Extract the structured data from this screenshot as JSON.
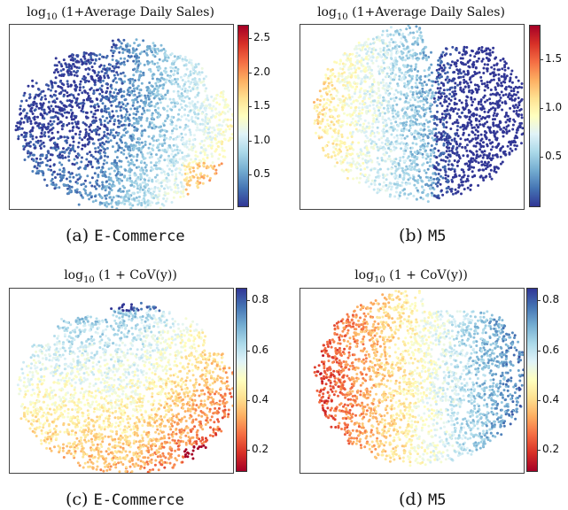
{
  "chart_data": [
    {
      "type": "scatter",
      "title_prefix": "log",
      "title_sub": "10",
      "title_rest": " (1+Average Daily Sales)",
      "caption_label": "(a)",
      "caption_dataset": "E-Commerce",
      "colorbar": {
        "range": [
          0.05,
          2.7
        ],
        "ticks": [
          "2.5",
          "2.0",
          "1.5",
          "1.0",
          "0.5"
        ],
        "tick_values": [
          2.5,
          2.0,
          1.5,
          1.0,
          0.5
        ],
        "cmap": "RdYlBu_r"
      },
      "grid": false
    },
    {
      "type": "scatter",
      "title_prefix": "log",
      "title_sub": "10",
      "title_rest": " (1+Average Daily Sales)",
      "caption_label": "(b)",
      "caption_dataset": "M5",
      "colorbar": {
        "range": [
          0.0,
          1.85
        ],
        "ticks": [
          "1.5",
          "1.0",
          "0.5"
        ],
        "tick_values": [
          1.5,
          1.0,
          0.5
        ],
        "cmap": "RdYlBu_r"
      },
      "grid": false
    },
    {
      "type": "scatter",
      "title_prefix": "log",
      "title_sub": "10",
      "title_rest": " (1 + CoV(y))",
      "caption_label": "(c)",
      "caption_dataset": "E-Commerce",
      "colorbar": {
        "range": [
          0.12,
          0.85
        ],
        "ticks": [
          "0.8",
          "0.6",
          "0.4",
          "0.2"
        ],
        "tick_values": [
          0.8,
          0.6,
          0.4,
          0.2
        ],
        "cmap": "RdYlBu"
      },
      "grid": false
    },
    {
      "type": "scatter",
      "title_prefix": "log",
      "title_sub": "10",
      "title_rest": " (1 + CoV(y))",
      "caption_label": "(d)",
      "caption_dataset": "M5",
      "colorbar": {
        "range": [
          0.12,
          0.85
        ],
        "ticks": [
          "0.8",
          "0.6",
          "0.4",
          "0.2"
        ],
        "tick_values": [
          0.8,
          0.6,
          0.4,
          0.2
        ],
        "cmap": "RdYlBu"
      },
      "grid": false
    }
  ]
}
